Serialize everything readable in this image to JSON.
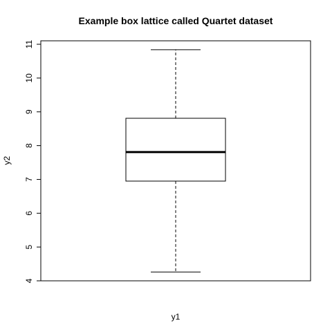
{
  "chart_data": {
    "type": "box",
    "title": "Example box lattice called Quartet dataset",
    "xlabel": "y1",
    "ylabel": "y2",
    "ylim": [
      4,
      11
    ],
    "yticks": [
      "4",
      "5",
      "6",
      "7",
      "8",
      "9",
      "10",
      "11"
    ],
    "box": {
      "min": 4.26,
      "q1": 6.95,
      "median": 7.81,
      "q3": 8.81,
      "max": 10.84
    }
  }
}
